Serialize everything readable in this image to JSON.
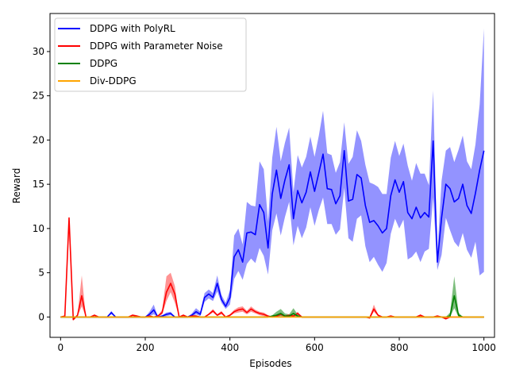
{
  "chart_data": {
    "type": "line",
    "title": "",
    "xlabel": "Episodes",
    "ylabel": "Reward",
    "xlim": [
      -25,
      1025
    ],
    "ylim": [
      -2.3,
      34.3
    ],
    "xticks": [
      0,
      200,
      400,
      600,
      800,
      1000
    ],
    "yticks": [
      0,
      5,
      10,
      15,
      20,
      25,
      30
    ],
    "grid": false,
    "legend_position": "top-left",
    "series": [
      {
        "name": "DDPG with PolyRL",
        "color": "#0000ff",
        "shade": "#8080ff",
        "x": [
          0,
          10,
          20,
          30,
          40,
          50,
          60,
          70,
          80,
          90,
          100,
          110,
          120,
          130,
          140,
          150,
          160,
          170,
          180,
          190,
          200,
          210,
          220,
          230,
          240,
          250,
          260,
          270,
          280,
          290,
          300,
          310,
          320,
          330,
          340,
          350,
          360,
          370,
          380,
          390,
          400,
          410,
          420,
          430,
          440,
          450,
          460,
          470,
          480,
          490,
          500,
          510,
          520,
          530,
          540,
          550,
          560,
          570,
          580,
          590,
          600,
          610,
          620,
          630,
          640,
          650,
          660,
          670,
          680,
          690,
          700,
          710,
          720,
          730,
          740,
          750,
          760,
          770,
          780,
          790,
          800,
          810,
          820,
          830,
          840,
          850,
          860,
          870,
          880,
          890,
          900,
          910,
          920,
          930,
          940,
          950,
          960,
          970,
          980,
          990,
          1000
        ],
        "values": [
          0,
          0,
          0,
          0,
          0,
          0,
          0,
          0,
          0,
          0,
          0,
          0,
          0.5,
          0,
          0,
          0,
          0,
          0,
          0,
          0,
          0,
          0.3,
          0.8,
          0,
          0.1,
          0.3,
          0.4,
          0,
          0,
          0,
          0,
          0.2,
          0.6,
          0.3,
          2.2,
          2.6,
          2.2,
          3.8,
          2.0,
          1.2,
          2.2,
          6.8,
          7.6,
          6.2,
          9.5,
          9.6,
          9.3,
          12.7,
          11.8,
          7.8,
          13.9,
          16.6,
          13.4,
          15.5,
          17.2,
          11.1,
          14.3,
          12.9,
          14.1,
          16.4,
          14.2,
          16.3,
          18.4,
          14.5,
          14.4,
          12.8,
          13.7,
          18.8,
          13.1,
          13.3,
          16.1,
          15.7,
          12.6,
          10.7,
          10.9,
          10.3,
          9.5,
          10.0,
          13.7,
          15.5,
          14.1,
          15.3,
          11.8,
          11.1,
          12.4,
          11.2,
          11.8,
          11.3,
          19.9,
          6.2,
          11.2,
          15.0,
          14.5,
          13.0,
          13.4,
          15.0,
          12.6,
          11.7,
          14.0,
          16.6,
          18.8
        ],
        "lower": [
          0,
          0,
          0,
          0,
          0,
          0,
          0,
          0,
          0,
          0,
          0,
          0,
          0.3,
          0,
          0,
          0,
          0,
          0,
          0,
          0,
          0,
          0.1,
          0.3,
          0,
          0,
          0.1,
          0.2,
          0,
          0,
          0,
          0,
          0,
          0.3,
          0.1,
          1.7,
          2.1,
          1.8,
          2.9,
          1.6,
          0.9,
          1.4,
          4.3,
          5.2,
          4.2,
          6.0,
          6.6,
          6.1,
          7.8,
          6.9,
          4.8,
          9.8,
          11.7,
          9.2,
          11.3,
          13.0,
          8.1,
          10.3,
          8.9,
          10.1,
          12.4,
          10.3,
          12.1,
          13.5,
          10.5,
          10.5,
          9.3,
          9.9,
          14.6,
          8.9,
          8.5,
          11.1,
          11.5,
          8.0,
          6.2,
          6.8,
          5.9,
          5.1,
          6.1,
          9.4,
          11.1,
          10.0,
          11.0,
          6.5,
          6.8,
          7.4,
          6.2,
          7.4,
          7.7,
          13.5,
          5.3,
          7.0,
          11.2,
          9.8,
          8.5,
          7.9,
          9.5,
          7.6,
          6.7,
          8.5,
          4.7,
          5.1
        ],
        "upper": [
          0,
          0,
          0,
          0,
          0,
          0,
          0,
          0,
          0,
          0,
          0,
          0,
          0.7,
          0,
          0,
          0,
          0,
          0,
          0,
          0,
          0,
          0.6,
          1.4,
          0,
          0.2,
          0.5,
          0.6,
          0,
          0,
          0,
          0,
          0.4,
          1.0,
          0.6,
          2.7,
          3.1,
          2.7,
          4.7,
          2.5,
          1.6,
          3.0,
          9.2,
          10.0,
          8.2,
          13.0,
          12.6,
          12.5,
          17.6,
          16.7,
          10.8,
          18.0,
          21.5,
          17.6,
          19.7,
          21.4,
          14.1,
          18.3,
          16.9,
          18.1,
          20.4,
          18.1,
          20.5,
          23.3,
          18.5,
          18.3,
          16.3,
          17.5,
          22.0,
          17.3,
          18.1,
          21.1,
          19.9,
          17.2,
          15.2,
          15.0,
          14.7,
          13.9,
          13.9,
          18.0,
          19.9,
          18.2,
          19.6,
          17.1,
          15.4,
          17.4,
          16.2,
          16.2,
          14.9,
          25.6,
          7.1,
          15.4,
          18.8,
          19.2,
          17.5,
          18.9,
          20.5,
          17.6,
          16.7,
          19.5,
          24.0,
          32.6
        ]
      },
      {
        "name": "DDPG with Parameter Noise",
        "color": "#ff0000",
        "shade": "#ff8080",
        "x": [
          0,
          10,
          20,
          30,
          40,
          50,
          60,
          70,
          80,
          90,
          100,
          110,
          120,
          130,
          140,
          150,
          160,
          170,
          180,
          190,
          200,
          210,
          220,
          230,
          240,
          250,
          260,
          270,
          280,
          290,
          300,
          310,
          320,
          330,
          340,
          350,
          360,
          370,
          380,
          390,
          400,
          410,
          420,
          430,
          440,
          450,
          460,
          470,
          480,
          490,
          500,
          510,
          520,
          530,
          540,
          550,
          560,
          570,
          580,
          590,
          600,
          610,
          620,
          630,
          640,
          650,
          660,
          670,
          680,
          690,
          700,
          710,
          720,
          730,
          740,
          750,
          760,
          770,
          780,
          790,
          800,
          810,
          820,
          830,
          840,
          850,
          860,
          870,
          880,
          890,
          900,
          910,
          920,
          930,
          940,
          950,
          960,
          970,
          980,
          990,
          1000
        ],
        "values": [
          0,
          0.1,
          11.2,
          -0.3,
          0.2,
          2.4,
          0,
          0,
          0.2,
          0,
          0,
          0,
          0,
          0,
          0,
          0,
          0,
          0.2,
          0.1,
          0,
          0,
          0.1,
          0,
          0.1,
          0.5,
          2.8,
          3.8,
          2.6,
          0,
          0.2,
          0,
          0.1,
          0.1,
          0,
          0,
          0.3,
          0.7,
          0.2,
          0.5,
          0,
          0.2,
          0.6,
          0.8,
          0.9,
          0.5,
          0.9,
          0.6,
          0.4,
          0.3,
          0.1,
          0,
          0.1,
          0.3,
          0.1,
          0.2,
          0.1,
          0.4,
          0,
          0,
          0,
          0,
          0,
          0,
          0,
          0,
          0,
          0,
          0,
          0,
          0,
          0,
          0,
          0,
          -0.1,
          0.9,
          0.2,
          0,
          0,
          0.1,
          0,
          0,
          0,
          0,
          0,
          0,
          0.2,
          0,
          0,
          0,
          0.1,
          0,
          -0.2,
          0,
          0,
          0,
          0,
          0,
          0,
          0,
          0,
          0
        ],
        "lower": [
          0,
          0,
          11.0,
          -0.4,
          0.1,
          1.2,
          0,
          0,
          0.1,
          0,
          0,
          0,
          0,
          0,
          0,
          0,
          0,
          0.1,
          0,
          0,
          0,
          0,
          0,
          0,
          0.3,
          1.8,
          2.8,
          1.6,
          0,
          0.1,
          0,
          0,
          0,
          0,
          0,
          0.2,
          0.5,
          0.1,
          0.3,
          0,
          0.1,
          0.4,
          0.5,
          0.6,
          0.3,
          0.6,
          0.4,
          0.2,
          0.1,
          0,
          0,
          0,
          0.1,
          0,
          0.1,
          0,
          0.2,
          0,
          0,
          0,
          0,
          0,
          0,
          0,
          0,
          0,
          0,
          0,
          0,
          0,
          0,
          0,
          0,
          -0.2,
          0.6,
          0.1,
          0,
          0,
          0,
          0,
          0,
          0,
          0,
          0,
          0,
          0.1,
          0,
          0,
          0,
          0,
          0,
          -0.3,
          0,
          0,
          0,
          0,
          0,
          0,
          0,
          0,
          0
        ],
        "upper": [
          0,
          0.2,
          11.4,
          -0.2,
          0.3,
          4.7,
          0,
          0,
          0.3,
          0,
          0,
          0,
          0,
          0,
          0,
          0,
          0,
          0.3,
          0.2,
          0,
          0,
          0.2,
          0,
          0.2,
          0.8,
          4.6,
          5.0,
          3.5,
          0,
          0.3,
          0,
          0.2,
          0.2,
          0,
          0,
          0.4,
          0.9,
          0.3,
          0.7,
          0,
          0.3,
          0.8,
          1.1,
          1.2,
          0.7,
          1.2,
          0.8,
          0.6,
          0.5,
          0.2,
          0,
          0.2,
          0.5,
          0.2,
          0.3,
          0.2,
          0.6,
          0,
          0,
          0,
          0,
          0,
          0,
          0,
          0,
          0,
          0,
          0,
          0,
          0,
          0,
          0,
          0,
          0,
          1.4,
          0.3,
          0,
          0,
          0.2,
          0,
          0,
          0,
          0,
          0,
          0,
          0.3,
          0,
          0,
          0,
          0.2,
          0,
          -0.1,
          0,
          0,
          0,
          0,
          0,
          0,
          0,
          0,
          0
        ]
      },
      {
        "name": "DDPG",
        "color": "#008000",
        "shade": "#66b366",
        "x": [
          0,
          100,
          200,
          300,
          400,
          490,
          500,
          510,
          520,
          530,
          540,
          550,
          560,
          570,
          580,
          700,
          800,
          900,
          910,
          920,
          930,
          940,
          950,
          960,
          1000
        ],
        "values": [
          0,
          0,
          0,
          0,
          0,
          0,
          0.1,
          0.2,
          0.4,
          0.1,
          0.1,
          0.4,
          0.1,
          0,
          0,
          0,
          0,
          0,
          0,
          0.1,
          2.4,
          0.2,
          0,
          0,
          0
        ],
        "lower": [
          0,
          0,
          0,
          0,
          0,
          0,
          0,
          0,
          0.1,
          0,
          0,
          0.1,
          0,
          0,
          0,
          0,
          0,
          0,
          0,
          0,
          1.0,
          0,
          0,
          0,
          0
        ],
        "upper": [
          0,
          0,
          0,
          0,
          0,
          0,
          0.2,
          0.6,
          0.9,
          0.4,
          0.3,
          1.0,
          0.3,
          0,
          0,
          0,
          0,
          0,
          0,
          0.5,
          4.6,
          0.5,
          0,
          0,
          0
        ]
      },
      {
        "name": "Div-DDPG",
        "color": "#ffa500",
        "shade": "#ffd280",
        "x": [
          0,
          100,
          200,
          300,
          400,
          500,
          600,
          700,
          800,
          900,
          1000
        ],
        "values": [
          0,
          0,
          0,
          0,
          0,
          0,
          0,
          0,
          0,
          0,
          0
        ],
        "lower": [
          0,
          0,
          0,
          0,
          0,
          0,
          0,
          0,
          0,
          0,
          0
        ],
        "upper": [
          0,
          0,
          0,
          0,
          0,
          0,
          0,
          0,
          0,
          0,
          0
        ]
      }
    ]
  }
}
